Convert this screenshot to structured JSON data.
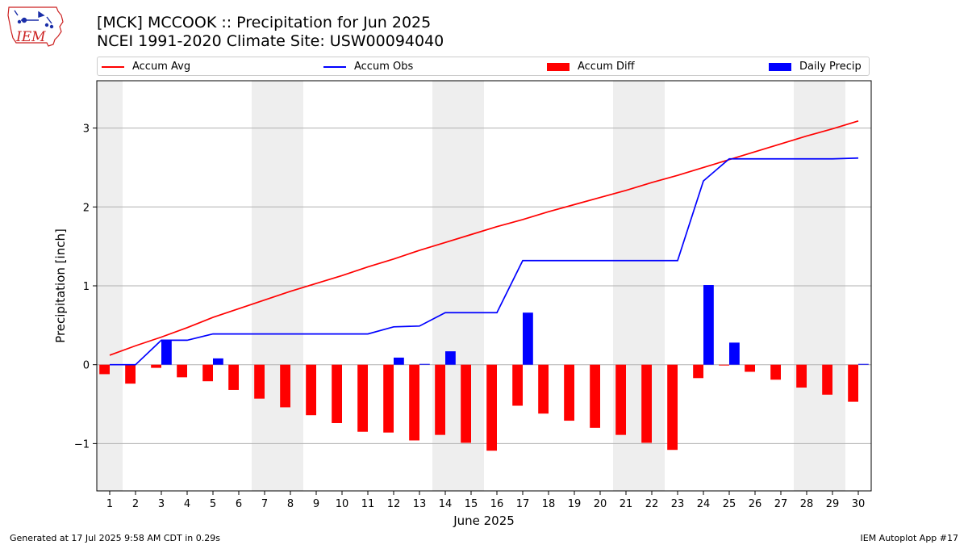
{
  "header": {
    "title_line1": "[MCK] MCCOOK :: Precipitation for Jun 2025",
    "title_line2": "NCEI 1991-2020 Climate Site: USW00094040"
  },
  "logo": {
    "text": "IEM",
    "color": "#cc2222",
    "accent": "#1a2ea8"
  },
  "footer": {
    "left": "Generated at 17 Jul 2025 9:58 AM CDT in 0.29s",
    "right": "IEM Autoplot App #17"
  },
  "legend": [
    {
      "name": "Accum Avg",
      "kind": "line",
      "color": "#ff0000"
    },
    {
      "name": "Accum Obs",
      "kind": "line",
      "color": "#0000ff"
    },
    {
      "name": "Accum Diff",
      "kind": "bar",
      "color": "#ff0000"
    },
    {
      "name": "Daily Precip",
      "kind": "bar",
      "color": "#0000ff"
    }
  ],
  "chart_data": {
    "type": "bar",
    "xlabel": "June 2025",
    "ylabel": "Precipitation [inch]",
    "xlim": [
      0.5,
      30.5
    ],
    "ylim": [
      -1.6,
      3.6
    ],
    "yticks": [
      -1,
      0,
      1,
      2,
      3
    ],
    "ytick_labels": [
      "−1",
      "0",
      "1",
      "2",
      "3"
    ],
    "grid": "horizontal",
    "weekend_shading": [
      [
        0.5,
        1.5
      ],
      [
        6.5,
        8.5
      ],
      [
        13.5,
        15.5
      ],
      [
        20.5,
        22.5
      ],
      [
        27.5,
        29.5
      ]
    ],
    "shade_color": "#eeeeee",
    "x": [
      1,
      2,
      3,
      4,
      5,
      6,
      7,
      8,
      9,
      10,
      11,
      12,
      13,
      14,
      15,
      16,
      17,
      18,
      19,
      20,
      21,
      22,
      23,
      24,
      25,
      26,
      27,
      28,
      29,
      30
    ],
    "series": [
      {
        "name": "Accum Avg",
        "type": "line",
        "color": "#ff0000",
        "values": [
          0.12,
          0.24,
          0.35,
          0.47,
          0.6,
          0.71,
          0.82,
          0.93,
          1.03,
          1.13,
          1.24,
          1.34,
          1.45,
          1.55,
          1.65,
          1.75,
          1.84,
          1.94,
          2.03,
          2.12,
          2.21,
          2.31,
          2.4,
          2.5,
          2.6,
          2.7,
          2.8,
          2.9,
          2.99,
          3.09
        ]
      },
      {
        "name": "Accum Obs",
        "type": "line",
        "color": "#0000ff",
        "values": [
          0,
          0,
          0.31,
          0.31,
          0.39,
          0.39,
          0.39,
          0.39,
          0.39,
          0.39,
          0.39,
          0.48,
          0.49,
          0.66,
          0.66,
          0.66,
          1.32,
          1.32,
          1.32,
          1.32,
          1.32,
          1.32,
          1.32,
          2.33,
          2.61,
          2.61,
          2.61,
          2.61,
          2.61,
          2.62
        ]
      },
      {
        "name": "Accum Diff",
        "type": "bar",
        "color": "#ff0000",
        "values": [
          -0.12,
          -0.24,
          -0.04,
          -0.16,
          -0.21,
          -0.32,
          -0.43,
          -0.54,
          -0.64,
          -0.74,
          -0.85,
          -0.86,
          -0.96,
          -0.89,
          -0.99,
          -1.09,
          -0.52,
          -0.62,
          -0.71,
          -0.8,
          -0.89,
          -0.99,
          -1.08,
          -0.17,
          -0.01,
          -0.09,
          -0.19,
          -0.29,
          -0.38,
          -0.47
        ]
      },
      {
        "name": "Daily Precip",
        "type": "bar",
        "color": "#0000ff",
        "values": [
          0,
          0,
          0.31,
          0,
          0.08,
          0,
          0,
          0,
          0,
          0,
          0,
          0.09,
          0.01,
          0.17,
          0,
          0,
          0.66,
          0,
          0,
          0,
          0,
          0,
          0,
          1.01,
          0.28,
          0,
          0,
          0,
          0,
          0.01
        ]
      }
    ]
  }
}
